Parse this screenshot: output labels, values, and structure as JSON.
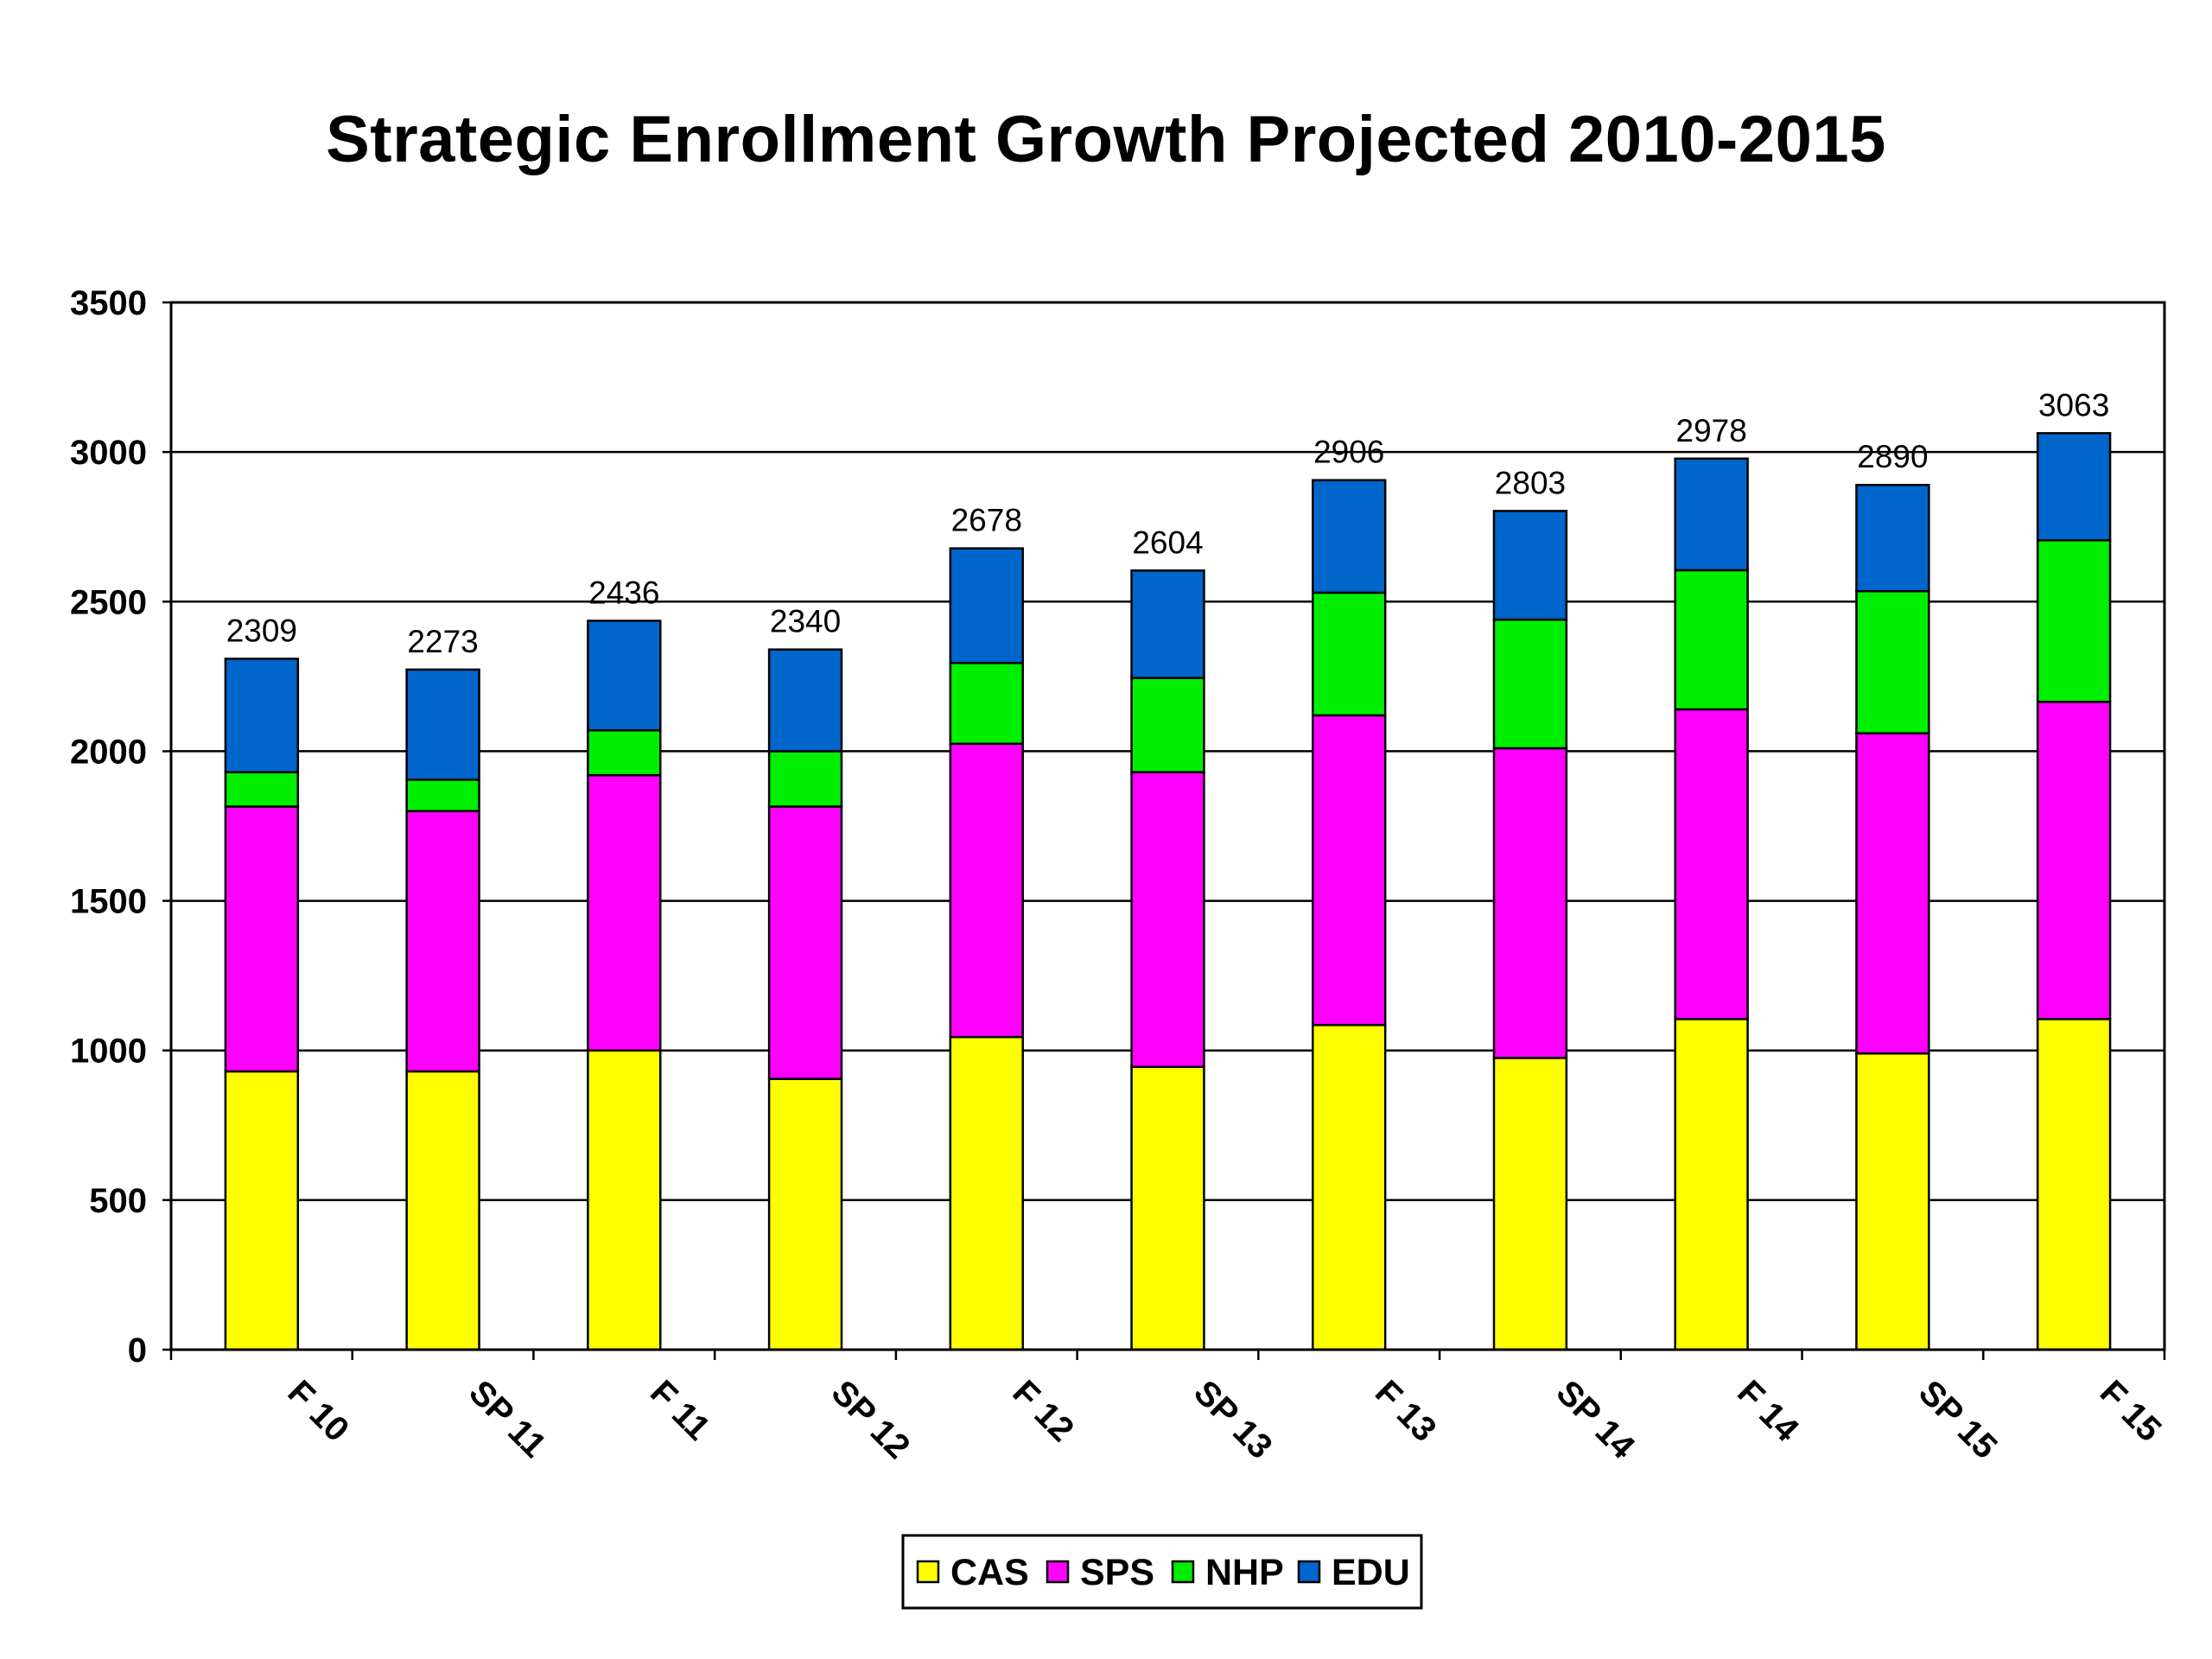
{
  "chart_data": {
    "type": "bar",
    "stacked": true,
    "title": "Strategic Enrollment Growth Projected 2010-2015",
    "xlabel": "",
    "ylabel": "",
    "ylim": [
      0,
      3500
    ],
    "yticks": [
      "0",
      "500",
      "1000",
      "1500",
      "2000",
      "2500",
      "3000",
      "3500"
    ],
    "grid": true,
    "legend_position": "bottom",
    "categories": [
      "F 10",
      "SP 11",
      "F 11",
      "SP 12",
      "F 12",
      "SP 13",
      "F 13",
      "SP 14",
      "F 14",
      "SP 15",
      "F 15"
    ],
    "series": [
      {
        "name": "CAS",
        "color": "#ffff00",
        "values": [
          930,
          930,
          1000,
          905,
          1045,
          945,
          1085,
          975,
          1105,
          990,
          1105
        ]
      },
      {
        "name": "SPS",
        "color": "#ff00ff",
        "values": [
          885,
          870,
          920,
          910,
          980,
          985,
          1035,
          1035,
          1035,
          1070,
          1060
        ]
      },
      {
        "name": "NHP",
        "color": "#00ee00",
        "values": [
          115,
          105,
          150,
          185,
          270,
          315,
          410,
          430,
          465,
          475,
          540
        ]
      },
      {
        "name": "EDU",
        "color": "#0066cc",
        "values": [
          379,
          368,
          366,
          340,
          383,
          359,
          376,
          363,
          373,
          355,
          358
        ]
      }
    ],
    "totals": [
      "2309",
      "2273",
      "2436",
      "2340",
      "2678",
      "2604",
      "2906",
      "2803",
      "2978",
      "2890",
      "3063"
    ]
  }
}
